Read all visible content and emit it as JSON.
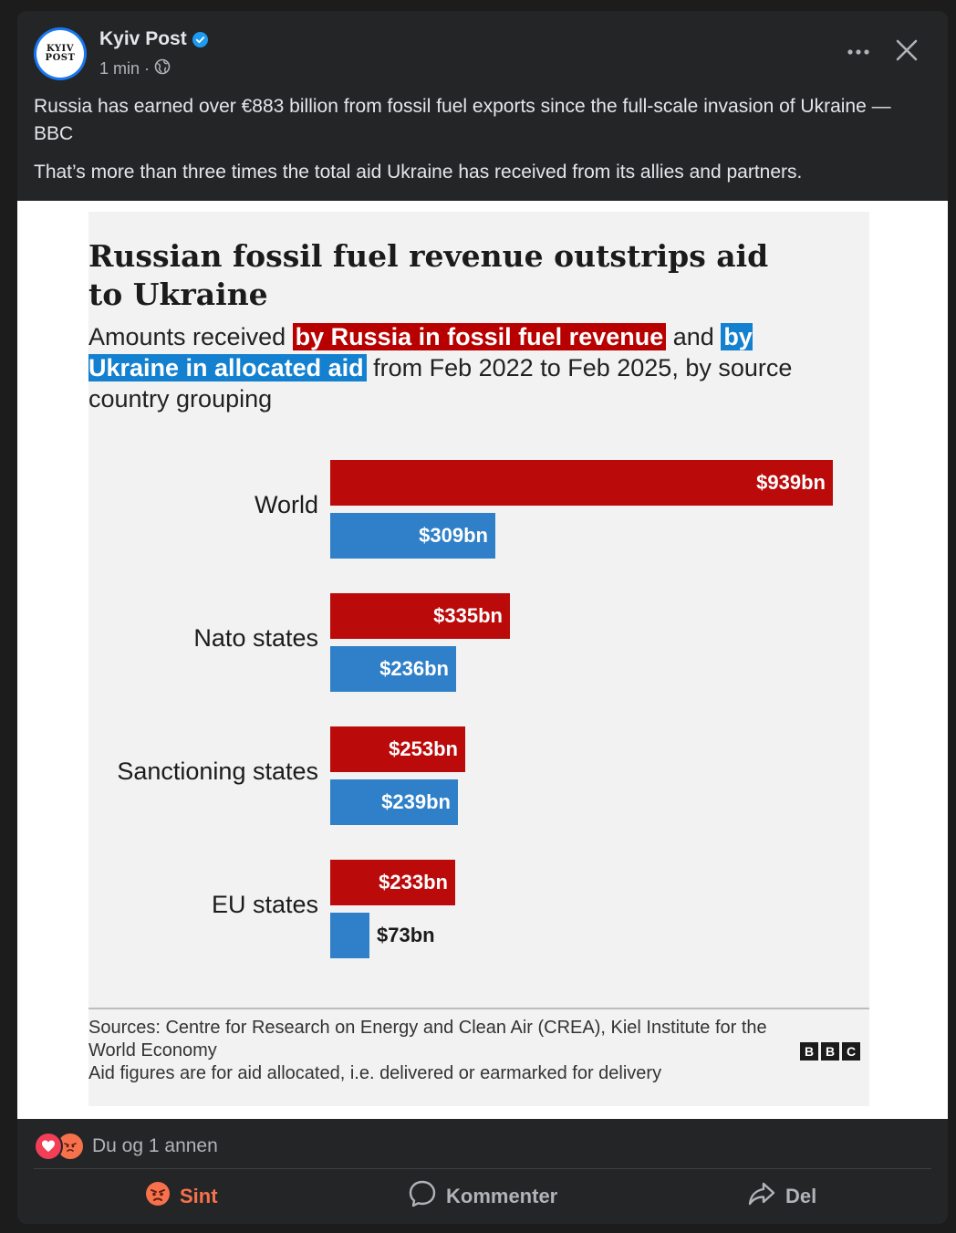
{
  "post": {
    "page_name": "Kyiv Post",
    "avatar_text_line1": "KYIV",
    "avatar_text_line2": "POST",
    "time": "1 min",
    "separator": "·",
    "text_line1": "Russia has earned over €883 billion from fossil fuel exports since the full-scale invasion of Ukraine — BBC",
    "text_line2": "That’s more than three times the total aid Ukraine has received from its allies and partners."
  },
  "infographic": {
    "title": "Russian fossil fuel revenue outstrips aid to Ukraine",
    "subtitle_part1": "Amounts received ",
    "subtitle_russia": "by Russia in fossil fuel revenue",
    "subtitle_part2": " and ",
    "subtitle_ukraine": "by Ukraine in allocated aid",
    "subtitle_part3": " from Feb 2022 to Feb 2025, by source country grouping",
    "sources_line1": "Sources: Centre for Research on Energy and Clean Air (CREA), Kiel Institute for the World Economy",
    "sources_line2": "Aid figures are for aid allocated, i.e. delivered or earmarked for delivery",
    "logo_letters": [
      "B",
      "B",
      "C"
    ]
  },
  "chart_data": {
    "type": "bar",
    "orientation": "horizontal",
    "categories": [
      "World",
      "Nato states",
      "Sanctioning states",
      "EU states"
    ],
    "series": [
      {
        "name": "by Russia in fossil fuel revenue",
        "values": [
          939,
          335,
          253,
          233
        ],
        "labels": [
          "$939bn",
          "$335bn",
          "$253bn",
          "$233bn"
        ],
        "color": "#bb0a0a"
      },
      {
        "name": "by Ukraine in allocated aid",
        "values": [
          309,
          236,
          239,
          73
        ],
        "labels": [
          "$309bn",
          "$236bn",
          "$239bn",
          "$73bn"
        ],
        "color": "#2f80c8"
      }
    ],
    "xlim": [
      0,
      939
    ],
    "grid": false,
    "legend": "in subtitle"
  },
  "footer": {
    "reaction_text": "Du og 1 annen",
    "action_angry": "Sint",
    "action_comment": "Kommenter",
    "action_share": "Del"
  },
  "colors": {
    "background": "#1c1c1d",
    "card": "#242526",
    "text_primary": "#e4e6eb",
    "text_secondary": "#b0b3b8",
    "verified": "#1d9bf0",
    "angry": "#f7714c",
    "love": "#f33e58"
  },
  "icons": {
    "verified": "verified-badge-icon",
    "audience": "globe-icon",
    "more": "more-options-icon",
    "close": "close-icon",
    "comment": "comment-bubble-icon",
    "share": "share-arrow-icon",
    "angry": "angry-face-icon",
    "love": "heart-icon"
  }
}
